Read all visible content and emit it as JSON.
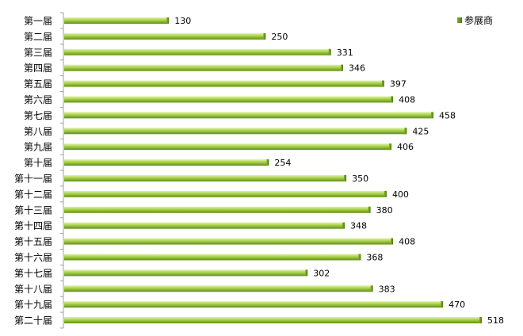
{
  "chart_data": {
    "type": "bar",
    "orientation": "horizontal",
    "title": "",
    "xlabel": "",
    "ylabel": "",
    "categories": [
      "第一届",
      "第二届",
      "第三届",
      "第四届",
      "第五届",
      "第六届",
      "第七届",
      "第八届",
      "第九届",
      "第十届",
      "第十一届",
      "第十二届",
      "第十三届",
      "第十四届",
      "第十五届",
      "第十六届",
      "第十七届",
      "第十八届",
      "第十九届",
      "第二十届"
    ],
    "series": [
      {
        "name": "参展商",
        "values": [
          130,
          250,
          331,
          346,
          397,
          408,
          458,
          425,
          406,
          254,
          350,
          400,
          380,
          348,
          408,
          368,
          302,
          383,
          470,
          518
        ],
        "color": "#9acd32"
      }
    ],
    "xlim": [
      0,
      518
    ],
    "grid": false,
    "legend": {
      "position": "top-right",
      "color": "#7ab82a"
    },
    "data_labels": true
  }
}
